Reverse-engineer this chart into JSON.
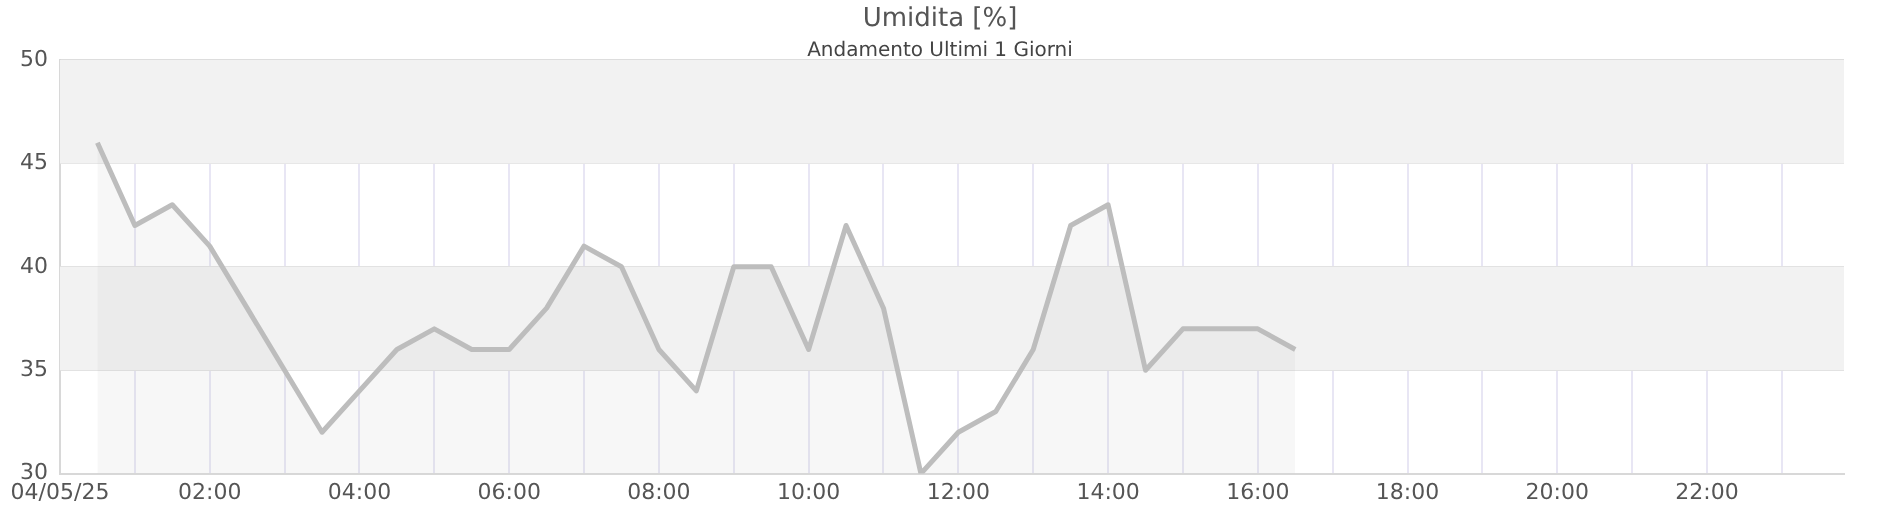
{
  "chart_data": {
    "type": "area",
    "title": "Umidita [%]",
    "subtitle": "Andamento Ultimi 1 Giorni",
    "x": [
      0.5,
      1,
      1.5,
      2,
      2.5,
      3,
      3.5,
      4,
      4.5,
      5,
      5.5,
      6,
      6.5,
      7,
      7.5,
      8,
      8.5,
      9,
      9.5,
      10,
      10.5,
      11,
      11.5,
      12,
      12.5,
      13,
      13.5,
      14,
      14.5,
      15,
      15.5,
      16,
      16.5
    ],
    "series": [
      {
        "color": "#bdbdbd",
        "values": [
          46,
          42,
          43,
          41,
          38,
          35,
          32,
          34,
          36,
          37,
          36,
          36,
          38,
          41,
          40,
          36,
          34,
          40,
          40,
          36,
          42,
          38,
          30,
          32,
          33,
          36,
          42,
          43,
          35,
          37,
          37,
          37,
          36
        ]
      }
    ],
    "xlim": [
      0,
      23.83
    ],
    "xticks": [
      {
        "value": 0,
        "label": "04/05/25"
      },
      {
        "value": 1,
        "label": null
      },
      {
        "value": 2,
        "label": "02:00"
      },
      {
        "value": 3,
        "label": null
      },
      {
        "value": 4,
        "label": "04:00"
      },
      {
        "value": 5,
        "label": null
      },
      {
        "value": 6,
        "label": "06:00"
      },
      {
        "value": 7,
        "label": null
      },
      {
        "value": 8,
        "label": "08:00"
      },
      {
        "value": 9,
        "label": null
      },
      {
        "value": 10,
        "label": "10:00"
      },
      {
        "value": 11,
        "label": null
      },
      {
        "value": 12,
        "label": "12:00"
      },
      {
        "value": 13,
        "label": null
      },
      {
        "value": 14,
        "label": "14:00"
      },
      {
        "value": 15,
        "label": null
      },
      {
        "value": 16,
        "label": "16:00"
      },
      {
        "value": 17,
        "label": null
      },
      {
        "value": 18,
        "label": "18:00"
      },
      {
        "value": 19,
        "label": null
      },
      {
        "value": 20,
        "label": "20:00"
      },
      {
        "value": 21,
        "label": null
      },
      {
        "value": 22,
        "label": "22:00"
      },
      {
        "value": 23,
        "label": null
      }
    ],
    "ylim": [
      30,
      50
    ],
    "yticks": [
      30,
      35,
      40,
      45,
      50
    ],
    "bands": [
      {
        "axis": "y",
        "from": 45,
        "to": 50,
        "color": "#f2f2f2"
      },
      {
        "axis": "y",
        "from": 35,
        "to": 40,
        "color": "#f2f2f2"
      }
    ],
    "grid": true,
    "legend": false,
    "marker": "none",
    "line_style": "solid"
  }
}
